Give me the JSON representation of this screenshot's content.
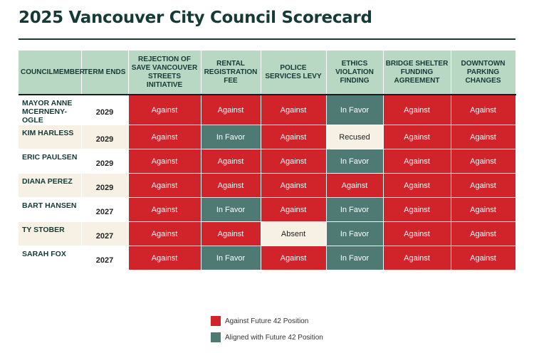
{
  "title": "2025 Vancouver City Council Scorecard",
  "colors": {
    "against": "#d1232a",
    "in_favor": "#4f7a73",
    "neutral": "#f6f1e4",
    "header": "#b9d8c3",
    "title": "#163a36"
  },
  "table": {
    "headers": {
      "councilmember": "Councilmember",
      "term_ends": "Term Ends",
      "votes": [
        "Rejection of Save Vancouver Streets Initiative",
        "Rental Registration Fee",
        "Police Services Levy",
        "Ethics Violation Finding",
        "Bridge Shelter Funding Agreement",
        "Downtown Parking Changes"
      ]
    },
    "rows": [
      {
        "name": "Mayor Anne McErneny-Ogle",
        "term": "2029",
        "votes": [
          "Against",
          "Against",
          "Against",
          "In Favor",
          "Against",
          "Against"
        ]
      },
      {
        "name": "Kim Harless",
        "term": "2029",
        "votes": [
          "Against",
          "In Favor",
          "Against",
          "Recused",
          "Against",
          "Against"
        ]
      },
      {
        "name": "Eric Paulsen",
        "term": "2029",
        "votes": [
          "Against",
          "Against",
          "Against",
          "In Favor",
          "Against",
          "Against"
        ]
      },
      {
        "name": "Diana Perez",
        "term": "2029",
        "votes": [
          "Against",
          "Against",
          "Against",
          "Against",
          "Against",
          "Against"
        ]
      },
      {
        "name": "Bart Hansen",
        "term": "2027",
        "votes": [
          "Against",
          "In Favor",
          "Against",
          "In Favor",
          "Against",
          "Against"
        ]
      },
      {
        "name": "Ty Stober",
        "term": "2027",
        "votes": [
          "Against",
          "Against",
          "Absent",
          "In Favor",
          "Against",
          "Against"
        ]
      },
      {
        "name": "Sarah Fox",
        "term": "2027",
        "votes": [
          "Against",
          "In Favor",
          "Against",
          "In Favor",
          "Against",
          "Against"
        ]
      }
    ]
  },
  "legend": {
    "items": [
      {
        "label": "Against Future 42 Position",
        "color": "#d1232a"
      },
      {
        "label": "Aligned with Future 42 Position",
        "color": "#4f7a73"
      }
    ]
  }
}
